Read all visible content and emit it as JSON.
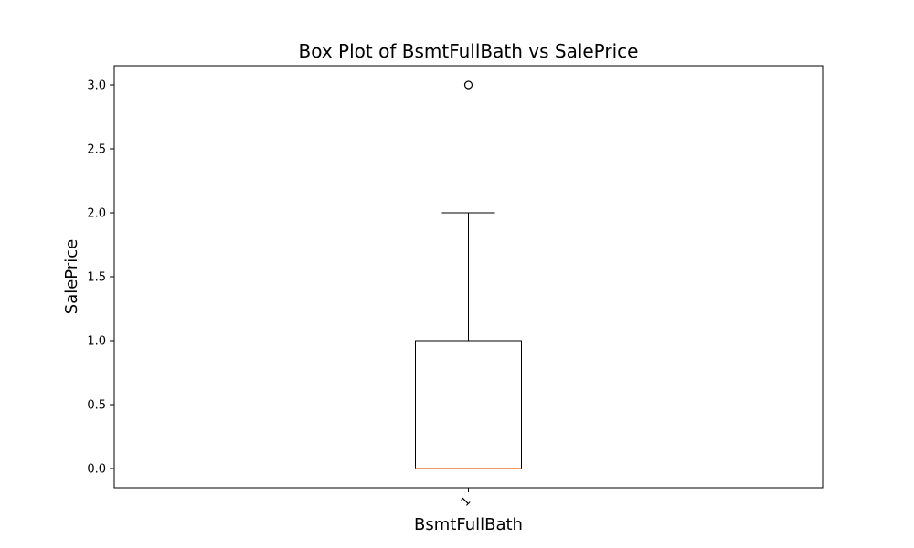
{
  "colors": {
    "background": "#ffffff",
    "axes": "#000000",
    "box": "#000000",
    "median": "#e07b39",
    "outlier_edge": "#000000"
  },
  "chart_data": {
    "type": "box",
    "title": "Box Plot of BsmtFullBath vs SalePrice",
    "xlabel": "BsmtFullBath",
    "ylabel": "SalePrice",
    "categories": [
      "1"
    ],
    "boxes": [
      {
        "category": "1",
        "whisker_low": 0.0,
        "q1": 0.0,
        "median": 0.0,
        "q3": 1.0,
        "whisker_high": 2.0,
        "outliers": [
          3.0
        ]
      }
    ],
    "ylim": [
      -0.15,
      3.15
    ],
    "yticks": [
      0.0,
      0.5,
      1.0,
      1.5,
      2.0,
      2.5,
      3.0
    ],
    "ytick_labels": [
      "0.0",
      "0.5",
      "1.0",
      "1.5",
      "2.0",
      "2.5",
      "3.0"
    ],
    "xtick_rotation": -45,
    "grid": false,
    "legend": false
  }
}
